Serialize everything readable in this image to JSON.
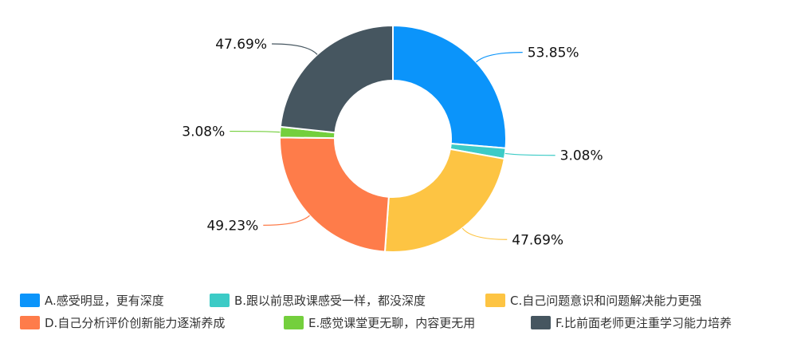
{
  "chart_data": {
    "type": "pie",
    "variant": "donut",
    "title": "",
    "slices": [
      {
        "label": "A.感受明显，更有深度",
        "value": 53.85,
        "value_label": "53.85%",
        "color": "#0b94fa"
      },
      {
        "label": "B.跟以前思政课感受一样，都没深度",
        "value": 3.08,
        "value_label": "3.08%",
        "color": "#3ccbc6"
      },
      {
        "label": "C.自己问题意识和问题解决能力更强",
        "value": 47.69,
        "value_label": "47.69%",
        "color": "#fdc443"
      },
      {
        "label": "D.自己分析评价创新能力逐渐养成",
        "value": 49.23,
        "value_label": "49.23%",
        "color": "#fe7c4a"
      },
      {
        "label": "E.感觉课堂更无聊，内容更无用",
        "value": 3.08,
        "value_label": "3.08%",
        "color": "#74cf3d"
      },
      {
        "label": "F.比前面老师更注重学习能力培养",
        "value": 47.69,
        "value_label": "47.69%",
        "color": "#465660"
      }
    ],
    "legend_position": "bottom",
    "start_angle": "top",
    "direction": "clockwise"
  }
}
